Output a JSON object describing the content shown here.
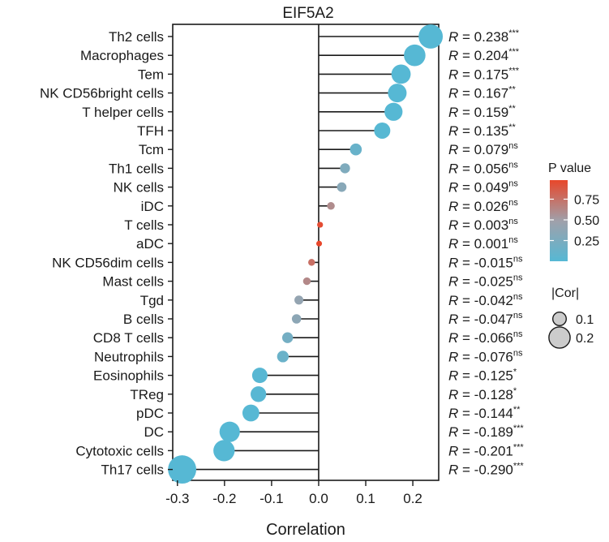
{
  "chart_data": {
    "type": "scatter",
    "title": "EIF5A2",
    "xlabel": "Correlation",
    "ylabel": "",
    "xlim": [
      -0.31,
      0.255
    ],
    "xticks": [
      "-0.3",
      "-0.2",
      "-0.1",
      "0.0",
      "0.1",
      "0.2"
    ],
    "xtick_values": [
      -0.3,
      -0.2,
      -0.1,
      0.0,
      0.1,
      0.2
    ],
    "r_prefix": "R",
    "r_equals": " = ",
    "categories": [
      "Th2 cells",
      "Macrophages",
      "Tem",
      "NK CD56bright cells",
      "T helper cells",
      "TFH",
      "Tcm",
      "Th1 cells",
      "NK cells",
      "iDC",
      "T cells",
      "aDC",
      "NK CD56dim cells",
      "Mast cells",
      "Tgd",
      "B cells",
      "CD8 T cells",
      "Neutrophils",
      "Eosinophils",
      "TReg",
      "pDC",
      "DC",
      "Cytotoxic cells",
      "Th17 cells"
    ],
    "values": [
      0.238,
      0.204,
      0.175,
      0.167,
      0.159,
      0.135,
      0.079,
      0.056,
      0.049,
      0.026,
      0.003,
      0.001,
      -0.015,
      -0.025,
      -0.042,
      -0.047,
      -0.066,
      -0.076,
      -0.125,
      -0.128,
      -0.144,
      -0.189,
      -0.201,
      -0.29
    ],
    "r_labels": [
      "0.238",
      "0.204",
      "0.175",
      "0.167",
      "0.159",
      "0.135",
      "0.079",
      "0.056",
      "0.049",
      "0.026",
      "0.003",
      "0.001",
      "-0.015",
      "-0.025",
      "-0.042",
      "-0.047",
      "-0.066",
      "-0.076",
      "-0.125",
      "-0.128",
      "-0.144",
      "-0.189",
      "-0.201",
      "-0.290"
    ],
    "significance": [
      "***",
      "***",
      "***",
      "**",
      "**",
      "**",
      "ns",
      "ns",
      "ns",
      "ns",
      "ns",
      "ns",
      "ns",
      "ns",
      "ns",
      "ns",
      "ns",
      "ns",
      "*",
      "*",
      "**",
      "***",
      "***",
      "***"
    ],
    "p_values": [
      0.0001,
      0.0002,
      0.0008,
      0.002,
      0.003,
      0.008,
      0.12,
      0.27,
      0.33,
      0.6,
      0.95,
      0.98,
      0.76,
      0.62,
      0.41,
      0.36,
      0.2,
      0.13,
      0.014,
      0.012,
      0.005,
      0.0002,
      0.0001,
      1e-05
    ],
    "legend_color": {
      "title": "P value",
      "ticks": [
        "0.75",
        "0.50",
        "0.25"
      ],
      "tick_values": [
        0.75,
        0.5,
        0.25
      ],
      "range": [
        0.0,
        0.98
      ],
      "color_low": "#56B8D4",
      "color_mid": "#A0A0AA",
      "color_high": "#E8472B"
    },
    "legend_size": {
      "title": "|Cor|",
      "items": [
        {
          "label": "0.1",
          "value": 0.1
        },
        {
          "label": "0.2",
          "value": 0.2
        }
      ]
    },
    "grid": false,
    "legend_position": "right"
  }
}
